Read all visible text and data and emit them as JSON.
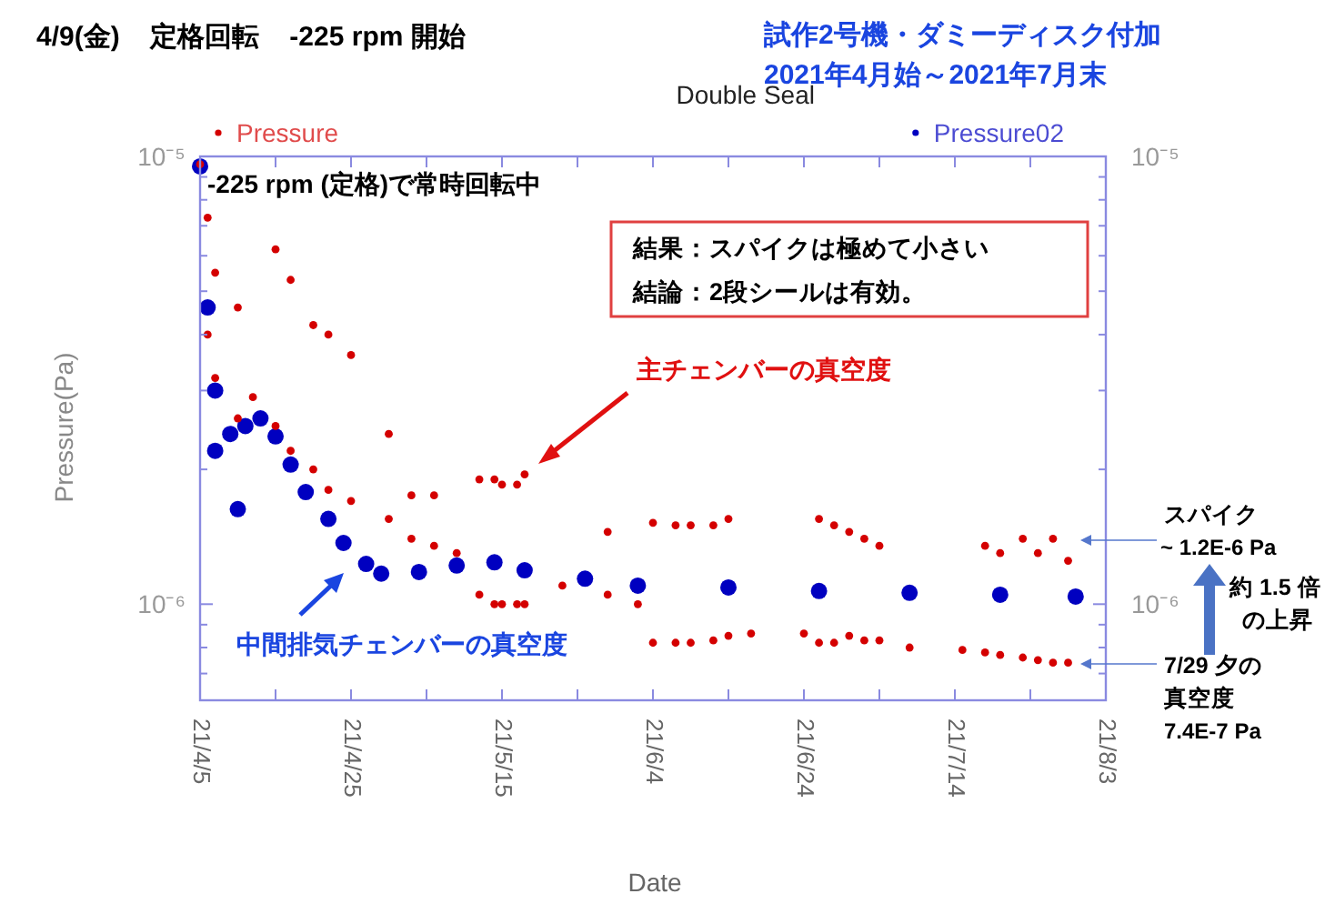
{
  "chart_data": {
    "type": "scatter",
    "title": "Double Seal",
    "xlabel": "Date",
    "ylabel": "Pressure(Pa)",
    "annotations": [
      "4/9(金)    定格回転    -225 rpm 開始",
      "試作2号機・ダミーディスク付加",
      "2021年4月始～2021年7月末",
      "-225 rpm (定格)で常時回転中",
      "結果：スパイクは極めて小さい",
      "結論：2段シールは有効。",
      "主チェンバーの真空度",
      "中間排気チェンバーの真空度",
      "スパイク",
      "~ 1.2E-6 Pa",
      "約 1.5 倍",
      "の上昇",
      "7/29 夕の",
      "真空度",
      "7.4E-7 Pa"
    ],
    "xlim": [
      "2021-04-05",
      "2021-08-03"
    ],
    "xticks": [
      {
        "value": "2021-04-05",
        "label": "21/4/5"
      },
      {
        "value": "2021-04-15",
        "label": null
      },
      {
        "value": "2021-04-25",
        "label": "21/4/25"
      },
      {
        "value": "2021-05-05",
        "label": null
      },
      {
        "value": "2021-05-15",
        "label": "21/5/15"
      },
      {
        "value": "2021-05-25",
        "label": null
      },
      {
        "value": "2021-06-04",
        "label": "21/6/4"
      },
      {
        "value": "2021-06-14",
        "label": null
      },
      {
        "value": "2021-06-24",
        "label": "21/6/24"
      },
      {
        "value": "2021-07-04",
        "label": null
      },
      {
        "value": "2021-07-14",
        "label": "21/7/14"
      },
      {
        "value": "2021-07-24",
        "label": null
      },
      {
        "value": "2021-08-03",
        "label": "21/8/3"
      }
    ],
    "ylim": [
      6.1e-07,
      1e-05
    ],
    "yticks": [
      {
        "value": 7e-07,
        "label": null
      },
      {
        "value": 8e-07,
        "label": null
      },
      {
        "value": 9e-07,
        "label": null
      },
      {
        "value": 1e-06,
        "label": "10⁻⁶"
      },
      {
        "value": 2e-06,
        "label": null
      },
      {
        "value": 3e-06,
        "label": null
      },
      {
        "value": 4e-06,
        "label": null
      },
      {
        "value": 5e-06,
        "label": null
      },
      {
        "value": 6e-06,
        "label": null
      },
      {
        "value": 7e-06,
        "label": null
      },
      {
        "value": 8e-06,
        "label": null
      },
      {
        "value": 9e-06,
        "label": null
      },
      {
        "value": 1e-05,
        "label": "10⁻⁵"
      }
    ],
    "log": true,
    "grid": false,
    "legend": "top",
    "marker": "circle",
    "series": [
      {
        "name": "Pressure",
        "color": "#d40000",
        "x": [
          "2021-04-05",
          "2021-04-06",
          "2021-04-06",
          "2021-04-07",
          "2021-04-07",
          "2021-04-10",
          "2021-04-10",
          "2021-04-12",
          "2021-04-15",
          "2021-04-15",
          "2021-04-17",
          "2021-04-17",
          "2021-04-20",
          "2021-04-20",
          "2021-04-22",
          "2021-04-22",
          "2021-04-25",
          "2021-04-25",
          "2021-04-30",
          "2021-04-30",
          "2021-05-03",
          "2021-05-03",
          "2021-05-06",
          "2021-05-06",
          "2021-05-09",
          "2021-05-12",
          "2021-05-12",
          "2021-05-14",
          "2021-05-14",
          "2021-05-15",
          "2021-05-15",
          "2021-05-17",
          "2021-05-17",
          "2021-05-18",
          "2021-05-18",
          "2021-05-23",
          "2021-05-29",
          "2021-05-29",
          "2021-06-02",
          "2021-06-04",
          "2021-06-04",
          "2021-06-07",
          "2021-06-07",
          "2021-06-09",
          "2021-06-09",
          "2021-06-12",
          "2021-06-12",
          "2021-06-14",
          "2021-06-14",
          "2021-06-17",
          "2021-06-24",
          "2021-06-26",
          "2021-06-26",
          "2021-06-28",
          "2021-06-28",
          "2021-06-30",
          "2021-06-30",
          "2021-07-02",
          "2021-07-02",
          "2021-07-04",
          "2021-07-04",
          "2021-07-08",
          "2021-07-15",
          "2021-07-18",
          "2021-07-18",
          "2021-07-20",
          "2021-07-20",
          "2021-07-23",
          "2021-07-23",
          "2021-07-25",
          "2021-07-25",
          "2021-07-27",
          "2021-07-27",
          "2021-07-29",
          "2021-07-29"
        ],
        "values": [
          9.6e-06,
          7.3e-06,
          4e-06,
          5.5e-06,
          3.2e-06,
          4.6e-06,
          2.6e-06,
          2.9e-06,
          6.2e-06,
          2.5e-06,
          5.3e-06,
          2.2e-06,
          4.2e-06,
          2e-06,
          4e-06,
          1.8e-06,
          3.6e-06,
          1.7e-06,
          2.4e-06,
          1.55e-06,
          1.75e-06,
          1.4e-06,
          1.75e-06,
          1.35e-06,
          1.3e-06,
          1.9e-06,
          1.05e-06,
          1.9e-06,
          1e-06,
          1.85e-06,
          1e-06,
          1.85e-06,
          1e-06,
          1.95e-06,
          1e-06,
          1.1e-06,
          1.45e-06,
          1.05e-06,
          1e-06,
          1.52e-06,
          8.2e-07,
          1.5e-06,
          8.2e-07,
          1.5e-06,
          8.2e-07,
          1.5e-06,
          8.3e-07,
          1.55e-06,
          8.5e-07,
          8.6e-07,
          8.6e-07,
          1.55e-06,
          8.2e-07,
          1.5e-06,
          8.2e-07,
          1.45e-06,
          8.5e-07,
          1.4e-06,
          8.3e-07,
          1.35e-06,
          8.3e-07,
          8e-07,
          7.9e-07,
          1.35e-06,
          7.8e-07,
          1.3e-06,
          7.7e-07,
          1.4e-06,
          7.6e-07,
          1.3e-06,
          7.5e-07,
          1.4e-06,
          7.4e-07,
          1.25e-06,
          7.4e-07
        ]
      },
      {
        "name": "Pressure02",
        "color": "#0000c0",
        "x": [
          "2021-04-05",
          "2021-04-06",
          "2021-04-07",
          "2021-04-07",
          "2021-04-09",
          "2021-04-10",
          "2021-04-11",
          "2021-04-13",
          "2021-04-15",
          "2021-04-17",
          "2021-04-19",
          "2021-04-22",
          "2021-04-24",
          "2021-04-27",
          "2021-04-29",
          "2021-05-04",
          "2021-05-09",
          "2021-05-14",
          "2021-05-18",
          "2021-05-26",
          "2021-06-02",
          "2021-06-14",
          "2021-06-26",
          "2021-07-08",
          "2021-07-20",
          "2021-07-30"
        ],
        "values": [
          9.5e-06,
          4.6e-06,
          3e-06,
          2.2e-06,
          2.4e-06,
          1.63e-06,
          2.5e-06,
          2.6e-06,
          2.37e-06,
          2.05e-06,
          1.78e-06,
          1.55e-06,
          1.37e-06,
          1.23e-06,
          1.17e-06,
          1.18e-06,
          1.22e-06,
          1.24e-06,
          1.19e-06,
          1.14e-06,
          1.1e-06,
          1.09e-06,
          1.07e-06,
          1.06e-06,
          1.05e-06,
          1.04e-06
        ]
      }
    ]
  }
}
